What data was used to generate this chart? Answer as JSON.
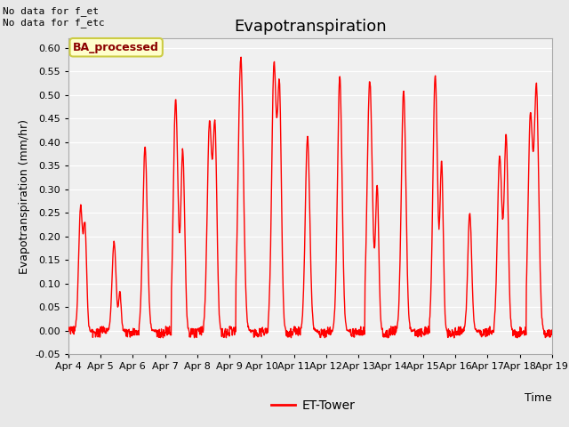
{
  "title": "Evapotranspiration",
  "xlabel": "Time",
  "ylabel": "Evapotranspiration (mm/hr)",
  "ylim": [
    -0.05,
    0.62
  ],
  "yticks": [
    -0.05,
    0.0,
    0.05,
    0.1,
    0.15,
    0.2,
    0.25,
    0.3,
    0.35,
    0.4,
    0.45,
    0.5,
    0.55,
    0.6
  ],
  "xtick_labels": [
    "Apr 4",
    "Apr 5",
    "Apr 6",
    "Apr 7",
    "Apr 8",
    "Apr 9",
    "Apr 10",
    "Apr 11",
    "Apr 12",
    "Apr 13",
    "Apr 14",
    "Apr 15",
    "Apr 16",
    "Apr 17",
    "Apr 18",
    "Apr 19"
  ],
  "line_color": "#ff0000",
  "line_width": 1.0,
  "fig_bg_color": "#e8e8e8",
  "plot_bg_color": "#f0f0f0",
  "annotation_top_left": "No data for f_et\nNo data for f_etc",
  "legend_label": "ET-Tower",
  "box_label": "BA_processed",
  "box_facecolor": "#ffffcc",
  "box_edgecolor": "#cccc44",
  "title_fontsize": 13,
  "label_fontsize": 9,
  "tick_fontsize": 8,
  "num_days": 15,
  "points_per_day": 96,
  "day_configs": [
    [
      [
        0.38,
        0.26,
        0.06
      ],
      [
        0.52,
        0.21,
        0.05
      ]
    ],
    [
      [
        0.42,
        0.19,
        0.06
      ],
      [
        0.6,
        0.08,
        0.04
      ]
    ],
    [
      [
        0.38,
        0.39,
        0.07
      ]
    ],
    [
      [
        0.33,
        0.49,
        0.07
      ],
      [
        0.55,
        0.38,
        0.06
      ]
    ],
    [
      [
        0.38,
        0.44,
        0.07
      ],
      [
        0.55,
        0.42,
        0.06
      ]
    ],
    [
      [
        0.35,
        0.58,
        0.08
      ]
    ],
    [
      [
        0.38,
        0.56,
        0.07
      ],
      [
        0.55,
        0.5,
        0.06
      ]
    ],
    [
      [
        0.42,
        0.41,
        0.07
      ]
    ],
    [
      [
        0.42,
        0.54,
        0.07
      ]
    ],
    [
      [
        0.35,
        0.53,
        0.08
      ],
      [
        0.58,
        0.3,
        0.05
      ]
    ],
    [
      [
        0.4,
        0.51,
        0.07
      ]
    ],
    [
      [
        0.38,
        0.54,
        0.07
      ],
      [
        0.58,
        0.35,
        0.05
      ]
    ],
    [
      [
        0.45,
        0.25,
        0.06
      ]
    ],
    [
      [
        0.38,
        0.37,
        0.07
      ],
      [
        0.58,
        0.41,
        0.06
      ]
    ],
    [
      [
        0.33,
        0.45,
        0.07
      ],
      [
        0.52,
        0.51,
        0.07
      ]
    ]
  ]
}
